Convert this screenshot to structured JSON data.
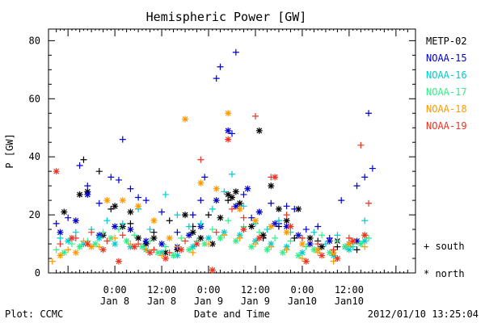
{
  "chart_data": {
    "type": "scatter",
    "title": "Hemispheric Power [GW]",
    "xlabel": "Date and Time",
    "ylabel": "P [GW]",
    "ylim": [
      0,
      84
    ],
    "xlim": [
      -17,
      77
    ],
    "x_unit": "hours since 2012-01-08 00:00 UT",
    "yticks": [
      0,
      20,
      40,
      60,
      80
    ],
    "xticks": [
      {
        "x": 0,
        "line1": "0:00",
        "line2": "Jan 8"
      },
      {
        "x": 12,
        "line1": "12:00",
        "line2": "Jan 8"
      },
      {
        "x": 24,
        "line1": "0:00",
        "line2": "Jan 9"
      },
      {
        "x": 36,
        "line1": "12:00",
        "line2": "Jan 9"
      },
      {
        "x": 48,
        "line1": "0:00",
        "line2": "Jan10"
      },
      {
        "x": 60,
        "line1": "12:00",
        "line2": "Jan10"
      }
    ],
    "legend_position": "right",
    "marker_legend": {
      "south": "+ south",
      "north": "* north"
    },
    "series": [
      {
        "name": "METP-02",
        "color": "#000000",
        "south": [
          [
            -8,
            39
          ],
          [
            -4,
            35
          ],
          [
            -1,
            22
          ],
          [
            4,
            17
          ],
          [
            10,
            14
          ],
          [
            14,
            18
          ],
          [
            20,
            16
          ],
          [
            24,
            20
          ],
          [
            29,
            25
          ],
          [
            33,
            15
          ],
          [
            38,
            12
          ],
          [
            42,
            16
          ],
          [
            46,
            12
          ],
          [
            52,
            11
          ],
          [
            57,
            9
          ],
          [
            62,
            8
          ]
        ],
        "north": [
          [
            -13,
            21
          ],
          [
            -9,
            27
          ],
          [
            -7,
            28
          ],
          [
            -3,
            13
          ],
          [
            0,
            23
          ],
          [
            2,
            16
          ],
          [
            4,
            21
          ],
          [
            6,
            12
          ],
          [
            8,
            10
          ],
          [
            10,
            12
          ],
          [
            13,
            7
          ],
          [
            16,
            8
          ],
          [
            18,
            20
          ],
          [
            20,
            14
          ],
          [
            22,
            12
          ],
          [
            25,
            10
          ],
          [
            27,
            19
          ],
          [
            29,
            27
          ],
          [
            30,
            26
          ],
          [
            31,
            28
          ],
          [
            32,
            24
          ],
          [
            35,
            16
          ],
          [
            37,
            49
          ],
          [
            38,
            13
          ],
          [
            40,
            30
          ],
          [
            42,
            22
          ],
          [
            44,
            18
          ],
          [
            47,
            22
          ],
          [
            50,
            12
          ],
          [
            53,
            9
          ],
          [
            57,
            11
          ],
          [
            60,
            10
          ]
        ]
      },
      {
        "name": "NOAA-15",
        "color": "#0000cc",
        "south": [
          [
            -15,
            17
          ],
          [
            -12,
            19
          ],
          [
            -9,
            37
          ],
          [
            -7,
            30
          ],
          [
            -4,
            24
          ],
          [
            -1,
            33
          ],
          [
            1,
            32
          ],
          [
            2,
            46
          ],
          [
            4,
            29
          ],
          [
            6,
            26
          ],
          [
            8,
            25
          ],
          [
            12,
            21
          ],
          [
            16,
            14
          ],
          [
            20,
            20
          ],
          [
            22,
            25
          ],
          [
            23,
            33
          ],
          [
            26,
            67
          ],
          [
            27,
            71
          ],
          [
            30,
            48
          ],
          [
            31,
            76
          ],
          [
            33,
            27
          ],
          [
            35,
            19
          ],
          [
            37,
            21
          ],
          [
            40,
            24
          ],
          [
            42,
            17
          ],
          [
            44,
            23
          ],
          [
            46,
            22
          ],
          [
            49,
            15
          ],
          [
            52,
            16
          ],
          [
            55,
            12
          ],
          [
            58,
            25
          ],
          [
            62,
            30
          ],
          [
            64,
            33
          ],
          [
            65,
            55
          ],
          [
            66,
            36
          ]
        ],
        "north": [
          [
            -14,
            14
          ],
          [
            -10,
            18
          ],
          [
            -7,
            27
          ],
          [
            -4,
            13
          ],
          [
            0,
            16
          ],
          [
            4,
            15
          ],
          [
            8,
            11
          ],
          [
            12,
            10
          ],
          [
            16,
            9
          ],
          [
            19,
            13
          ],
          [
            22,
            16
          ],
          [
            26,
            25
          ],
          [
            29,
            49
          ],
          [
            31,
            23
          ],
          [
            34,
            29
          ],
          [
            37,
            21
          ],
          [
            41,
            17
          ],
          [
            44,
            16
          ],
          [
            47,
            13
          ],
          [
            50,
            10
          ],
          [
            55,
            11
          ],
          [
            59,
            9
          ],
          [
            62,
            11
          ]
        ]
      },
      {
        "name": "NOAA-16",
        "color": "#00cccc",
        "south": [
          [
            -14,
            12
          ],
          [
            -10,
            14
          ],
          [
            -6,
            15
          ],
          [
            -2,
            18
          ],
          [
            2,
            17
          ],
          [
            6,
            22
          ],
          [
            9,
            15
          ],
          [
            13,
            27
          ],
          [
            16,
            20
          ],
          [
            19,
            16
          ],
          [
            22,
            17
          ],
          [
            25,
            22
          ],
          [
            28,
            28
          ],
          [
            30,
            34
          ],
          [
            33,
            23
          ],
          [
            36,
            17
          ],
          [
            39,
            15
          ],
          [
            42,
            18
          ],
          [
            45,
            14
          ],
          [
            48,
            12
          ],
          [
            51,
            14
          ],
          [
            54,
            10
          ],
          [
            57,
            13
          ],
          [
            61,
            9
          ],
          [
            64,
            18
          ]
        ],
        "north": [
          [
            -12,
            11
          ],
          [
            -8,
            10
          ],
          [
            -4,
            12
          ],
          [
            0,
            10
          ],
          [
            4,
            9
          ],
          [
            8,
            8
          ],
          [
            12,
            7
          ],
          [
            16,
            6
          ],
          [
            20,
            9
          ],
          [
            24,
            12
          ],
          [
            28,
            14
          ],
          [
            32,
            13
          ],
          [
            36,
            11
          ],
          [
            40,
            10
          ],
          [
            44,
            9
          ],
          [
            48,
            7
          ],
          [
            52,
            8
          ],
          [
            56,
            6
          ],
          [
            60,
            8
          ],
          [
            64,
            11
          ]
        ]
      },
      {
        "name": "NOAA-17",
        "color": "#33ee88",
        "south": [
          [
            -15,
            8
          ],
          [
            -11,
            10
          ],
          [
            -7,
            11
          ],
          [
            -3,
            14
          ],
          [
            1,
            15
          ],
          [
            5,
            13
          ],
          [
            9,
            11
          ],
          [
            13,
            9
          ],
          [
            17,
            12
          ],
          [
            21,
            11
          ],
          [
            25,
            15
          ],
          [
            29,
            18
          ],
          [
            33,
            16
          ],
          [
            37,
            14
          ],
          [
            41,
            12
          ],
          [
            45,
            11
          ],
          [
            49,
            9
          ],
          [
            53,
            13
          ],
          [
            57,
            11
          ],
          [
            61,
            10
          ],
          [
            65,
            12
          ]
        ],
        "north": [
          [
            -13,
            7
          ],
          [
            -9,
            9
          ],
          [
            -5,
            10
          ],
          [
            -1,
            12
          ],
          [
            3,
            11
          ],
          [
            7,
            9
          ],
          [
            11,
            7
          ],
          [
            15,
            6
          ],
          [
            19,
            8
          ],
          [
            23,
            10
          ],
          [
            27,
            12
          ],
          [
            31,
            11
          ],
          [
            35,
            9
          ],
          [
            39,
            8
          ],
          [
            43,
            7
          ],
          [
            47,
            6
          ],
          [
            51,
            8
          ],
          [
            55,
            7
          ],
          [
            59,
            9
          ],
          [
            63,
            10
          ]
        ]
      },
      {
        "name": "NOAA-18",
        "color": "#ff9900",
        "south": [
          [
            -16,
            4
          ],
          [
            -12,
            8
          ],
          [
            -8,
            11
          ],
          [
            -4,
            9
          ],
          [
            0,
            12
          ],
          [
            4,
            10
          ],
          [
            8,
            8
          ],
          [
            12,
            6
          ],
          [
            16,
            9
          ],
          [
            20,
            7
          ],
          [
            24,
            10
          ],
          [
            28,
            13
          ],
          [
            32,
            12
          ],
          [
            36,
            10
          ],
          [
            40,
            9
          ],
          [
            44,
            8
          ],
          [
            48,
            5
          ],
          [
            52,
            7
          ],
          [
            56,
            4
          ],
          [
            60,
            12
          ],
          [
            64,
            9
          ]
        ],
        "north": [
          [
            -14,
            6
          ],
          [
            -10,
            7
          ],
          [
            -6,
            9
          ],
          [
            -2,
            25
          ],
          [
            2,
            25
          ],
          [
            6,
            23
          ],
          [
            10,
            18
          ],
          [
            14,
            12
          ],
          [
            18,
            53
          ],
          [
            22,
            31
          ],
          [
            26,
            29
          ],
          [
            29,
            55
          ],
          [
            32,
            22
          ],
          [
            36,
            18
          ],
          [
            40,
            16
          ],
          [
            44,
            14
          ],
          [
            48,
            10
          ],
          [
            52,
            8
          ],
          [
            56,
            7
          ],
          [
            60,
            10
          ],
          [
            64,
            13
          ]
        ]
      },
      {
        "name": "NOAA-19",
        "color": "#ee3322",
        "south": [
          [
            -14,
            10
          ],
          [
            -10,
            12
          ],
          [
            -6,
            14
          ],
          [
            -2,
            11
          ],
          [
            2,
            13
          ],
          [
            6,
            10
          ],
          [
            10,
            8
          ],
          [
            14,
            7
          ],
          [
            18,
            11
          ],
          [
            22,
            39
          ],
          [
            26,
            14
          ],
          [
            30,
            22
          ],
          [
            33,
            19
          ],
          [
            36,
            54
          ],
          [
            40,
            33
          ],
          [
            44,
            20
          ],
          [
            48,
            12
          ],
          [
            52,
            10
          ],
          [
            56,
            8
          ],
          [
            60,
            12
          ],
          [
            63,
            44
          ],
          [
            65,
            24
          ]
        ],
        "north": [
          [
            -15,
            35
          ],
          [
            -11,
            12
          ],
          [
            -7,
            10
          ],
          [
            -3,
            8
          ],
          [
            1,
            4
          ],
          [
            5,
            9
          ],
          [
            9,
            7
          ],
          [
            13,
            5
          ],
          [
            17,
            8
          ],
          [
            21,
            10
          ],
          [
            25,
            1
          ],
          [
            29,
            46
          ],
          [
            33,
            15
          ],
          [
            37,
            12
          ],
          [
            41,
            33
          ],
          [
            45,
            16
          ],
          [
            49,
            4
          ],
          [
            53,
            6
          ],
          [
            57,
            5
          ],
          [
            61,
            11
          ],
          [
            64,
            13
          ]
        ]
      }
    ],
    "footer": {
      "left": "Plot: CCMC",
      "right": "2012/01/10 13:25:04"
    }
  }
}
